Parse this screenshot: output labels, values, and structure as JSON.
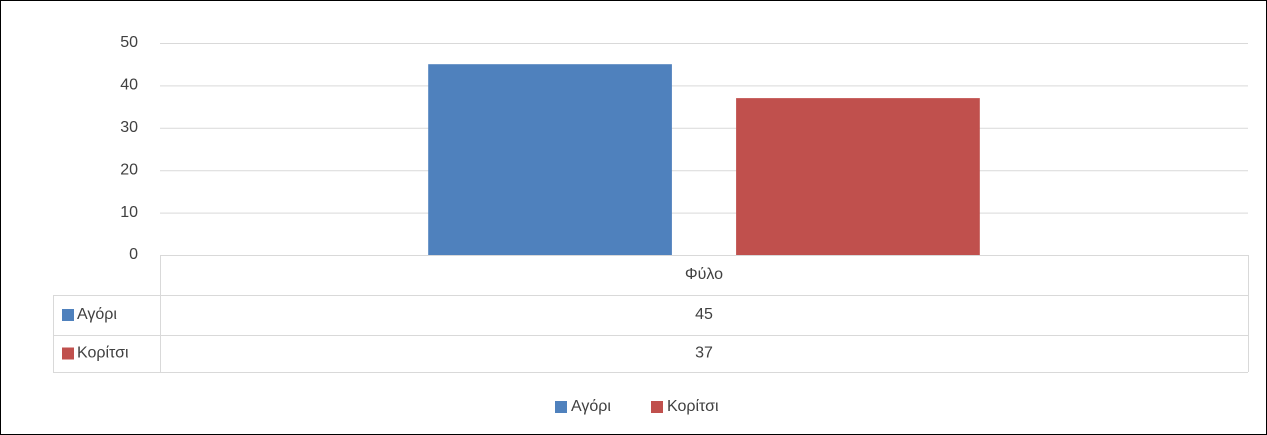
{
  "chart_data": {
    "type": "bar",
    "categories": [
      "Φύλο"
    ],
    "series": [
      {
        "name": "Αγόρι",
        "color": "#4f81bd",
        "values": [
          45
        ]
      },
      {
        "name": "Κορίτσι",
        "color": "#c0504d",
        "values": [
          37
        ]
      }
    ],
    "ylim": [
      0,
      50
    ],
    "yticks": [
      0,
      10,
      20,
      30,
      40,
      50
    ],
    "grid": true,
    "data_table": true,
    "legend": "bottom"
  }
}
